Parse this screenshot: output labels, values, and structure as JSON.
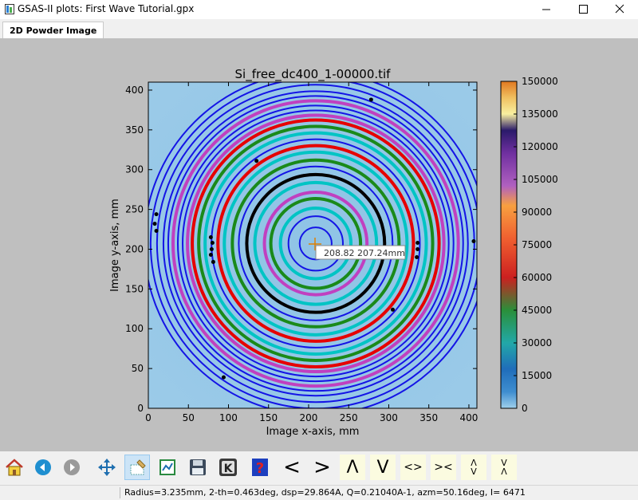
{
  "window": {
    "title": "GSAS-II plots: First Wave Tutorial.gpx",
    "controls": [
      "minimize-icon",
      "maximize-icon",
      "close-icon"
    ]
  },
  "tabs": [
    {
      "label": "2D Powder Image",
      "active": true
    }
  ],
  "plot": {
    "title": "Si_free_dc400_1-00000.tif",
    "xlabel": "Image x-axis, mm",
    "ylabel": "Image y-axis, mm",
    "xticks": [
      "0",
      "50",
      "100",
      "150",
      "200",
      "250",
      "300",
      "350",
      "400"
    ],
    "yticks": [
      "0",
      "50",
      "100",
      "150",
      "200",
      "250",
      "300",
      "350",
      "400"
    ],
    "cursor_tooltip": "208.82   207.24mm",
    "colorbar_ticks": [
      "0",
      "15000",
      "30000",
      "45000",
      "60000",
      "75000",
      "90000",
      "105000",
      "120000",
      "135000",
      "150000"
    ]
  },
  "chart_data": {
    "type": "heatmap",
    "title": "Si_free_dc400_1-00000.tif",
    "xlabel": "Image x-axis, mm",
    "ylabel": "Image y-axis, mm",
    "xlim": [
      0,
      410
    ],
    "ylim": [
      0,
      410
    ],
    "colorbar_range": [
      0,
      150000
    ],
    "beam_center_mm": [
      208.82,
      207.24
    ],
    "ring_radii_mm": [
      {
        "r": 20,
        "color": "#1414e6"
      },
      {
        "r": 34,
        "color": "#1414e6"
      },
      {
        "r": 44,
        "color": "#00c4c4"
      },
      {
        "r": 56,
        "color": "#1a8a1a"
      },
      {
        "r": 64,
        "color": "#c040c0"
      },
      {
        "r": 76,
        "color": "#00c4c4"
      },
      {
        "r": 86,
        "color": "#000000"
      },
      {
        "r": 96,
        "color": "#1414e6"
      },
      {
        "r": 104,
        "color": "#1a8a1a"
      },
      {
        "r": 114,
        "color": "#00c4c4"
      },
      {
        "r": 122,
        "color": "#e60000"
      },
      {
        "r": 130,
        "color": "#1414e6"
      },
      {
        "r": 138,
        "color": "#00c4c4"
      },
      {
        "r": 146,
        "color": "#1a8a1a"
      },
      {
        "r": 154,
        "color": "#e60000"
      },
      {
        "r": 160,
        "color": "#c040c0"
      },
      {
        "r": 166,
        "color": "#1414e6"
      },
      {
        "r": 172,
        "color": "#1414e6"
      },
      {
        "r": 178,
        "color": "#c040c0"
      },
      {
        "r": 184,
        "color": "#1414e6"
      },
      {
        "r": 190,
        "color": "#1414e6"
      },
      {
        "r": 198,
        "color": "#1414e6"
      },
      {
        "r": 206,
        "color": "#1414e6"
      },
      {
        "r": 214,
        "color": "#1414e6"
      }
    ],
    "calibration_points_mm": [
      [
        278,
        388
      ],
      [
        135,
        311
      ],
      [
        10,
        244
      ],
      [
        8,
        232
      ],
      [
        10,
        223
      ],
      [
        78,
        215
      ],
      [
        80,
        208
      ],
      [
        79,
        200
      ],
      [
        78,
        193
      ],
      [
        81,
        184
      ],
      [
        336,
        208
      ],
      [
        336,
        200
      ],
      [
        335,
        190
      ],
      [
        305,
        124
      ],
      [
        406,
        210
      ],
      [
        94,
        39
      ]
    ],
    "grid": false
  },
  "toolbar": [
    {
      "name": "home-icon",
      "type": "home"
    },
    {
      "name": "back-icon",
      "type": "back"
    },
    {
      "name": "forward-icon",
      "type": "forward"
    },
    {
      "name": "pan-icon",
      "type": "pan"
    },
    {
      "name": "zoom-rect-icon",
      "type": "zoom",
      "active": true
    },
    {
      "name": "subplots-icon",
      "type": "subplots"
    },
    {
      "name": "save-icon",
      "type": "save"
    },
    {
      "name": "key-icon",
      "type": "key",
      "label": "K"
    },
    {
      "name": "help-icon",
      "type": "help",
      "label": "?"
    },
    {
      "name": "shift-left-icon",
      "type": "glyph",
      "label": "<"
    },
    {
      "name": "shift-right-icon",
      "type": "glyph",
      "label": ">"
    },
    {
      "name": "shift-up-icon",
      "type": "glyph",
      "label": "Λ"
    },
    {
      "name": "shift-down-icon",
      "type": "glyph",
      "label": "V"
    },
    {
      "name": "expand-x-icon",
      "type": "glyph",
      "label": "<>"
    },
    {
      "name": "shrink-x-icon",
      "type": "glyph",
      "label": "><"
    },
    {
      "name": "expand-y-icon",
      "type": "vglyph",
      "label": [
        "Λ",
        "V"
      ]
    },
    {
      "name": "shrink-y-icon",
      "type": "vglyph",
      "label": [
        "V",
        "Λ"
      ]
    }
  ],
  "status": {
    "text": "Radius=3.235mm, 2-th=0.463deg, dsp=29.864A, Q=0.21040A-1, azm=50.16deg, I=  6471"
  }
}
